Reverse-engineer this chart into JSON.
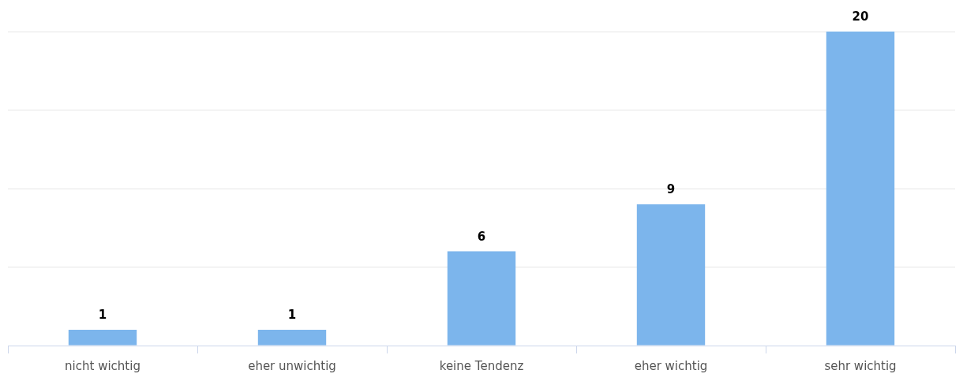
{
  "chart_data": {
    "type": "bar",
    "categories": [
      "nicht wichtig",
      "eher unwichtig",
      "keine Tendenz",
      "eher wichtig",
      "sehr wichtig"
    ],
    "values": [
      1,
      1,
      6,
      9,
      20
    ],
    "color": "#7cb5ec",
    "data_labels": true,
    "ylim": [
      0,
      20
    ],
    "yticks": [
      {
        "value": 0,
        "label": null
      },
      {
        "value": 5,
        "label": null
      },
      {
        "value": 10,
        "label": null
      },
      {
        "value": 15,
        "label": null
      },
      {
        "value": 20,
        "label": null
      }
    ],
    "tick_labels": "x",
    "grid": "y",
    "legend": false
  }
}
